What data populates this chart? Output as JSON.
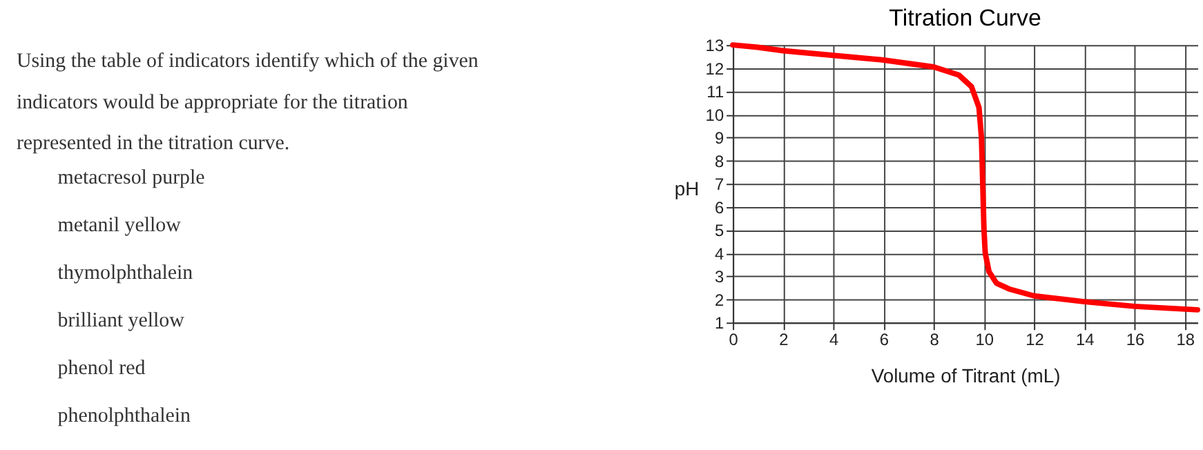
{
  "chart_data": [
    {
      "type": "other",
      "annotations": [
        "Using the table of indicators identify which of the given indicators would be appropriate for the titration represented in the titration curve.",
        "metacresol purple",
        "metanil yellow",
        "thymolphthalein",
        "brilliant yellow",
        "phenol red",
        "phenolphthalein"
      ]
    },
    {
      "type": "line",
      "title": "Titration Curve",
      "xlabel": "Volume of Titrant (mL)",
      "ylabel": "pH",
      "x": [
        0,
        1,
        2,
        4,
        6,
        8,
        9,
        9.5,
        9.8,
        9.9,
        9.95,
        10,
        10.05,
        10.2,
        10.5,
        11,
        12,
        14,
        16,
        18.5
      ],
      "series": [
        {
          "color": "#ff0000",
          "values": [
            13,
            12.9,
            12.75,
            12.55,
            12.35,
            12.05,
            11.7,
            11.2,
            10.3,
            9,
            7,
            5,
            4,
            3.2,
            2.7,
            2.45,
            2.15,
            1.9,
            1.7,
            1.55
          ]
        }
      ],
      "xlim": [
        0,
        18.5
      ],
      "xticks": [
        0,
        2,
        4,
        6,
        8,
        10,
        12,
        14,
        16,
        18
      ],
      "ylim": [
        1,
        13
      ],
      "yticks": [
        1,
        2,
        3,
        4,
        5,
        6,
        7,
        8,
        9,
        10,
        11,
        12,
        13
      ],
      "grid": true,
      "marker": "none",
      "line_style": "solid"
    }
  ]
}
